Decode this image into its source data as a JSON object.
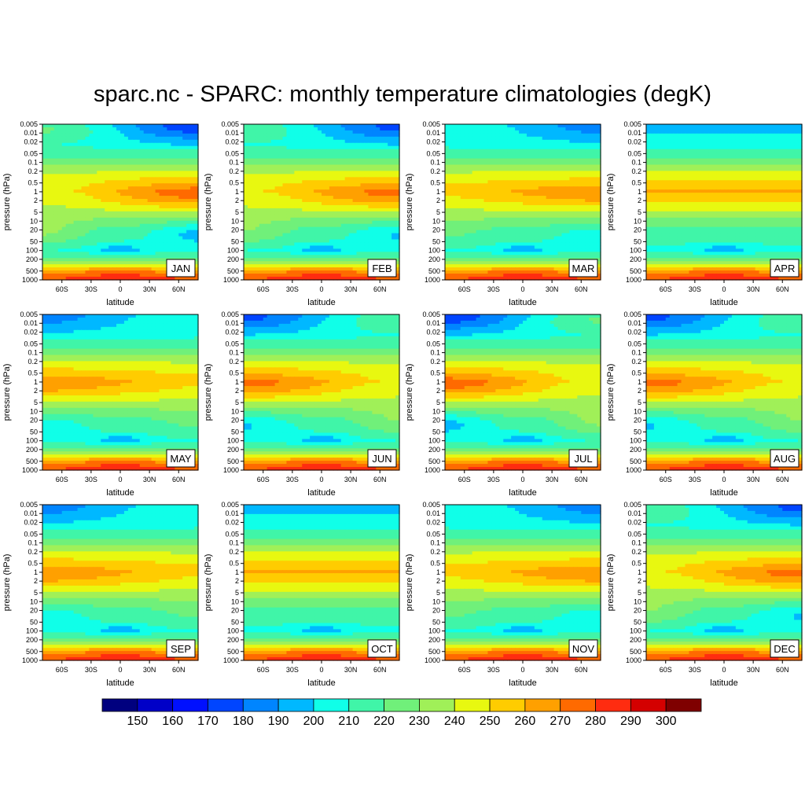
{
  "title": "sparc.nc - SPARC: monthly temperature climatologies (degK)",
  "chart_data": {
    "type": "heatmap",
    "panel_layout": "4 columns x 3 rows of filled-contour panels",
    "xlabel": "latitude",
    "ylabel": "pressure (hPa)",
    "x_ticks": [
      "60S",
      "30S",
      "0",
      "30N",
      "60N"
    ],
    "x_tick_values": [
      -60,
      -30,
      0,
      30,
      60
    ],
    "xlim": [
      -80,
      80
    ],
    "y_ticks": [
      "0.005",
      "0.01",
      "0.02",
      "0.05",
      "0.1",
      "0.2",
      "0.5",
      "1",
      "2",
      "5",
      "10",
      "20",
      "50",
      "100",
      "200",
      "500",
      "1000"
    ],
    "y_tick_values": [
      0.005,
      0.01,
      0.02,
      0.05,
      0.1,
      0.2,
      0.5,
      1,
      2,
      5,
      10,
      20,
      50,
      100,
      200,
      500,
      1000
    ],
    "ylim": [
      1000,
      0.005
    ],
    "y_scale": "log",
    "y_reversed": true,
    "months": [
      "JAN",
      "FEB",
      "MAR",
      "APR",
      "MAY",
      "JUN",
      "JUL",
      "AUG",
      "SEP",
      "OCT",
      "NOV",
      "DEC"
    ],
    "contour_levels": [
      150,
      160,
      170,
      180,
      190,
      200,
      210,
      220,
      230,
      240,
      250,
      260,
      270,
      280,
      290,
      300
    ],
    "colorbar_labels": [
      "150",
      "160",
      "170",
      "180",
      "190",
      "200",
      "210",
      "220",
      "230",
      "240",
      "250",
      "260",
      "270",
      "280",
      "290",
      "300"
    ],
    "colors": [
      "#00007f",
      "#0000c8",
      "#0010ff",
      "#0045ff",
      "#0085ff",
      "#00b8ff",
      "#10ffe8",
      "#40f5a8",
      "#70f07a",
      "#a0f058",
      "#e8f810",
      "#ffcc00",
      "#ffa000",
      "#ff6a00",
      "#ff2c10",
      "#d40000",
      "#7f0000"
    ],
    "units": "degK"
  }
}
